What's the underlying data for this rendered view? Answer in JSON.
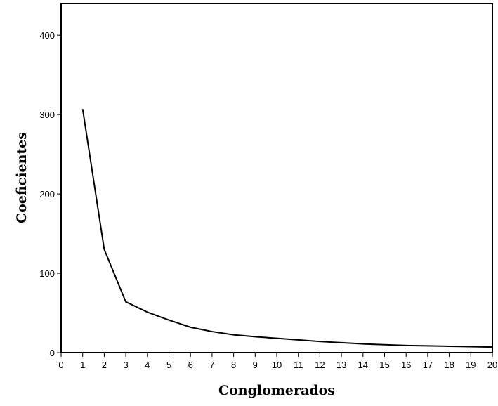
{
  "chart_data": {
    "type": "line",
    "xlabel": "Conglomerados",
    "ylabel": "Coeficientes",
    "xlim": [
      0,
      20
    ],
    "ylim": [
      0,
      440
    ],
    "x_ticks": [
      "0",
      "1",
      "2",
      "3",
      "4",
      "5",
      "6",
      "7",
      "8",
      "9",
      "10",
      "11",
      "12",
      "13",
      "14",
      "15",
      "16",
      "17",
      "18",
      "19",
      "20"
    ],
    "y_ticks": [
      "0",
      "100",
      "200",
      "300",
      "400"
    ],
    "grid": false,
    "series": [
      {
        "x": [
          1,
          2,
          3,
          4,
          5,
          6,
          7,
          8,
          9,
          10,
          11,
          12,
          13,
          14,
          15,
          16,
          17,
          18,
          19,
          20
        ],
        "values": [
          307,
          130,
          64,
          51,
          41,
          32,
          26.5,
          22.5,
          20,
          18,
          16,
          14,
          12.5,
          11,
          10,
          9,
          8.5,
          8,
          7.5,
          7
        ]
      }
    ],
    "line_color": "#000000"
  }
}
